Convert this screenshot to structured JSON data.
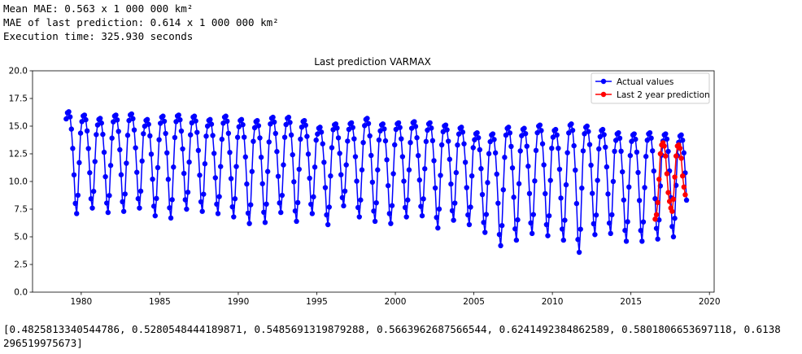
{
  "output": {
    "line1": "Mean MAE: 0.563 x 1 000 000 km²",
    "line2": "MAE of last prediction: 0.614 x 1 000 000 km²",
    "line3": "Execution time: 325.930 seconds",
    "result_line1": "[0.4825813340544786, 0.5280548444189871, 0.5485691319879288, 0.5663962687566544, 0.6241492384862589, 0.5801806653697118, 0.6138",
    "result_line2": "296519975673]"
  },
  "chart_data": {
    "type": "line",
    "title": "Last prediction VARMAX",
    "xlabel": "",
    "ylabel": "",
    "xlim": [
      1976.9,
      2020.3
    ],
    "ylim": [
      0,
      20
    ],
    "x_ticks": [
      1980,
      1985,
      1990,
      1995,
      2000,
      2005,
      2010,
      2015,
      2020
    ],
    "x_tick_labels": [
      "1980",
      "1985",
      "1990",
      "1995",
      "2000",
      "2005",
      "2010",
      "2015",
      "2020"
    ],
    "y_ticks": [
      0,
      2.5,
      5,
      7.5,
      10,
      12.5,
      15,
      17.5,
      20
    ],
    "y_tick_labels": [
      "0.0",
      "2.5",
      "5.0",
      "7.5",
      "10.0",
      "12.5",
      "15.0",
      "17.5",
      "20.0"
    ],
    "grid": false,
    "legend_position": "top-right",
    "series": [
      {
        "name": "Actual values",
        "color": "#0000ff",
        "marker": "circle",
        "start": "1979-01",
        "frequency": "monthly",
        "annual_max": [
          16.3,
          16.0,
          15.7,
          16.0,
          16.1,
          15.6,
          15.9,
          16.0,
          15.9,
          15.6,
          15.9,
          15.6,
          15.5,
          15.8,
          15.8,
          15.5,
          14.9,
          15.2,
          15.3,
          15.7,
          15.2,
          15.3,
          15.4,
          15.3,
          15.1,
          14.9,
          14.4,
          14.3,
          14.9,
          14.8,
          15.1,
          14.7,
          15.2,
          15.0,
          14.7,
          14.4,
          14.3,
          14.4,
          14.3,
          14.2
        ],
        "annual_min": [
          7.1,
          7.6,
          7.2,
          7.3,
          7.6,
          6.9,
          6.7,
          7.5,
          7.3,
          7.1,
          6.8,
          6.2,
          6.3,
          7.2,
          6.4,
          7.1,
          6.1,
          7.8,
          6.8,
          6.4,
          6.2,
          6.8,
          6.9,
          5.8,
          6.5,
          6.1,
          5.4,
          4.2,
          4.7,
          5.3,
          5.1,
          4.7,
          3.6,
          5.2,
          5.3,
          4.6,
          4.6,
          4.8,
          5.0,
          4.7
        ]
      },
      {
        "name": "Last 2 year prediction",
        "color": "#ff0000",
        "marker": "circle",
        "start": "2016-07",
        "frequency": "monthly",
        "values": [
          6.6,
          7.0,
          8.1,
          10.2,
          12.5,
          13.3,
          13.5,
          13.2,
          12.3,
          10.7,
          9.0,
          8.2,
          7.6,
          7.3,
          8.4,
          10.4,
          12.3,
          13.2,
          13.3,
          13.0,
          12.1,
          10.5,
          9.5,
          8.8
        ]
      }
    ]
  }
}
